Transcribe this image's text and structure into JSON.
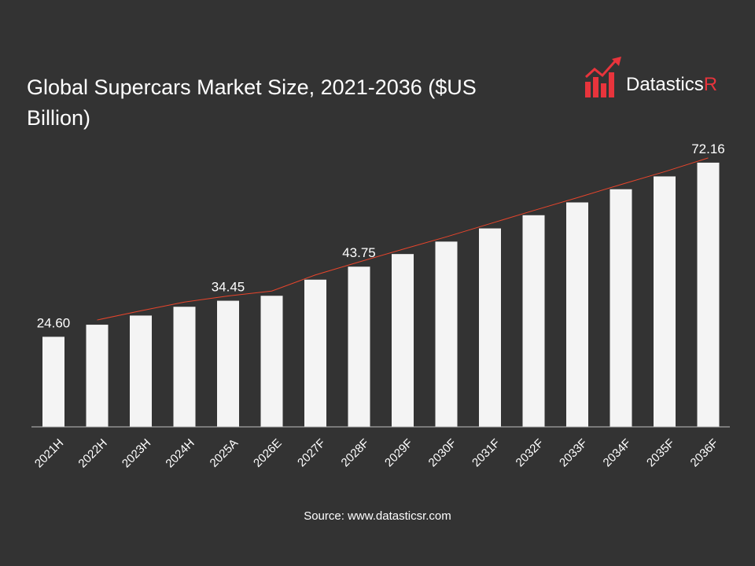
{
  "chart_data": {
    "type": "bar",
    "title": "Global Supercars Market Size, 2021-2036 ($US Billion)",
    "categories": [
      "2021H",
      "2022H",
      "2023H",
      "2024H",
      "2025A",
      "2026E",
      "2027F",
      "2028F",
      "2029F",
      "2030F",
      "2031F",
      "2032F",
      "2033F",
      "2034F",
      "2035F",
      "2036F"
    ],
    "values": [
      24.6,
      27.9,
      30.4,
      32.8,
      34.45,
      35.8,
      40.2,
      43.75,
      47.2,
      50.6,
      54.2,
      57.8,
      61.3,
      64.9,
      68.4,
      72.16
    ],
    "data_labels": {
      "0": "24.60",
      "4": "34.45",
      "7": "43.75",
      "15": "72.16"
    },
    "ylim": [
      0,
      73
    ],
    "bar_color": "#f4f4f4",
    "trendline_color": "#e8452c",
    "grid": false,
    "legend": "none"
  },
  "logo": {
    "text_main": "Datastics",
    "text_accent": "R",
    "accent_color": "#e8343c"
  },
  "source": "Source: www.datasticsr.com",
  "background": "#333333"
}
